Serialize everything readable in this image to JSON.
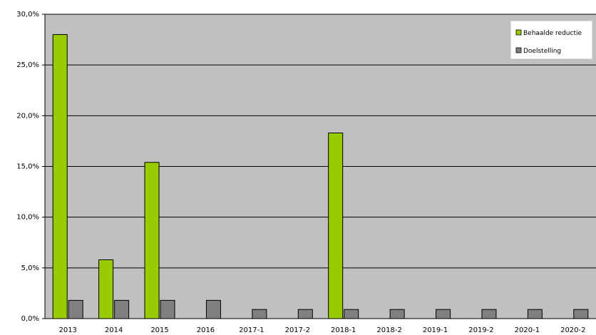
{
  "chart_data": {
    "type": "bar",
    "categories": [
      "2013",
      "2014",
      "2015",
      "2016",
      "2017-1",
      "2017-2",
      "2018-1",
      "2018-2",
      "2019-1",
      "2019-2",
      "2020-1",
      "2020-2"
    ],
    "series": [
      {
        "name": "Behaalde reductie",
        "color": "#99cc00",
        "values": [
          28.0,
          5.8,
          15.4,
          null,
          null,
          null,
          18.3,
          null,
          null,
          null,
          null,
          null
        ]
      },
      {
        "name": "Doelstelling",
        "color": "#808080",
        "values": [
          1.8,
          1.8,
          1.8,
          1.8,
          0.9,
          0.9,
          0.9,
          0.9,
          0.9,
          0.9,
          0.9,
          0.9
        ]
      }
    ],
    "y_ticks": [
      "0,0%",
      "5,0%",
      "10,0%",
      "15,0%",
      "20,0%",
      "25,0%",
      "30,0%"
    ],
    "ylim": [
      0,
      30
    ],
    "ytick_step": 5,
    "grid": true,
    "legend_position": "top-right",
    "plot_background": "#c0c0c0"
  }
}
